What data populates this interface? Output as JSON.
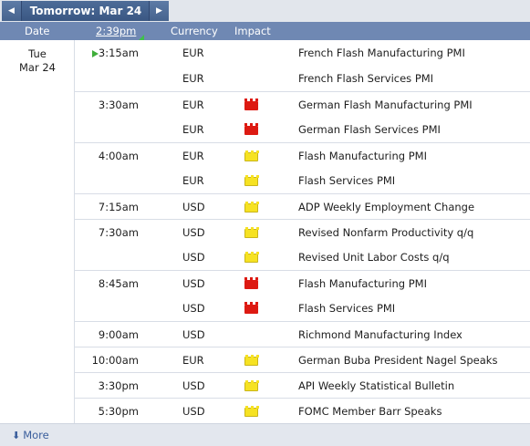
{
  "nav": {
    "prev_icon": "◀",
    "title": "Tomorrow: Mar 24",
    "next_icon": "▶"
  },
  "header": {
    "date": "Date",
    "time": "2:39pm",
    "currency": "Currency",
    "impact": "Impact"
  },
  "day": {
    "weekday": "Tue",
    "date": "Mar 24"
  },
  "colors": {
    "high": "#dd1a12",
    "medium": "#f08a28",
    "low": "#f6e222",
    "header_bg": "#6f88b3",
    "nav_bg": "#3a5783"
  },
  "events": [
    {
      "time": "3:15am",
      "currency": "EUR",
      "impact": "medium",
      "event": "French Flash Manufacturing PMI",
      "upnext": true
    },
    {
      "time": "",
      "currency": "EUR",
      "impact": "medium",
      "event": "French Flash Services PMI"
    },
    {
      "time": "3:30am",
      "currency": "EUR",
      "impact": "high",
      "event": "German Flash Manufacturing PMI"
    },
    {
      "time": "",
      "currency": "EUR",
      "impact": "high",
      "event": "German Flash Services PMI"
    },
    {
      "time": "4:00am",
      "currency": "EUR",
      "impact": "low",
      "event": "Flash Manufacturing PMI"
    },
    {
      "time": "",
      "currency": "EUR",
      "impact": "low",
      "event": "Flash Services PMI"
    },
    {
      "time": "7:15am",
      "currency": "USD",
      "impact": "low",
      "event": "ADP Weekly Employment Change"
    },
    {
      "time": "7:30am",
      "currency": "USD",
      "impact": "low",
      "event": "Revised Nonfarm Productivity q/q"
    },
    {
      "time": "",
      "currency": "USD",
      "impact": "low",
      "event": "Revised Unit Labor Costs q/q"
    },
    {
      "time": "8:45am",
      "currency": "USD",
      "impact": "high",
      "event": "Flash Manufacturing PMI"
    },
    {
      "time": "",
      "currency": "USD",
      "impact": "high",
      "event": "Flash Services PMI"
    },
    {
      "time": "9:00am",
      "currency": "USD",
      "impact": "medium",
      "event": "Richmond Manufacturing Index"
    },
    {
      "time": "10:00am",
      "currency": "EUR",
      "impact": "low",
      "event": "German Buba President Nagel Speaks"
    },
    {
      "time": "3:30pm",
      "currency": "USD",
      "impact": "low",
      "event": "API Weekly Statistical Bulletin"
    },
    {
      "time": "5:30pm",
      "currency": "USD",
      "impact": "low",
      "event": "FOMC Member Barr Speaks"
    }
  ],
  "footer": {
    "more_icon": "⬇",
    "more_label": "More"
  }
}
